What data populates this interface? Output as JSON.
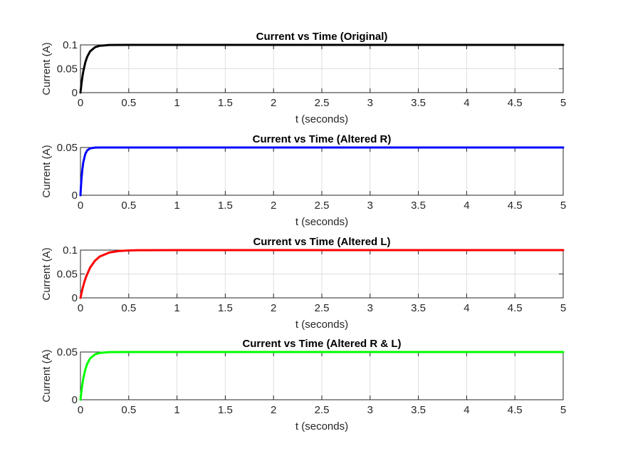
{
  "chart_data": [
    {
      "type": "line",
      "title": "Current vs Time (Original)",
      "xlabel": "t (seconds)",
      "ylabel": "Current (A)",
      "xlim": [
        0,
        5
      ],
      "ylim": [
        0,
        0.1
      ],
      "xticks": [
        "0",
        "0.5",
        "1",
        "1.5",
        "2",
        "2.5",
        "3",
        "3.5",
        "4",
        "4.5",
        "5"
      ],
      "yticks": [
        "0",
        "0.05",
        "0.1"
      ],
      "grid": true,
      "series": [
        {
          "color": "#000000",
          "x": [
            0,
            0.01,
            0.02,
            0.03,
            0.05,
            0.07,
            0.1,
            0.15,
            0.2,
            0.3,
            0.5,
            1,
            2,
            3,
            4,
            5
          ],
          "y": [
            0,
            0.0181,
            0.033,
            0.0451,
            0.0632,
            0.0753,
            0.0865,
            0.095,
            0.0982,
            0.0998,
            0.1,
            0.1,
            0.1,
            0.1,
            0.1,
            0.1
          ]
        }
      ]
    },
    {
      "type": "line",
      "title": "Current vs Time (Altered R)",
      "xlabel": "t (seconds)",
      "ylabel": "Current (A)",
      "xlim": [
        0,
        5
      ],
      "ylim": [
        0,
        0.05
      ],
      "xticks": [
        "0",
        "0.5",
        "1",
        "1.5",
        "2",
        "2.5",
        "3",
        "3.5",
        "4",
        "4.5",
        "5"
      ],
      "yticks": [
        "0",
        "0.05"
      ],
      "grid": true,
      "series": [
        {
          "color": "#0000ff",
          "x": [
            0,
            0.005,
            0.01,
            0.02,
            0.03,
            0.05,
            0.07,
            0.1,
            0.15,
            0.2,
            0.5,
            1,
            2,
            3,
            4,
            5
          ],
          "y": [
            0,
            0.0091,
            0.0165,
            0.0275,
            0.0349,
            0.0432,
            0.047,
            0.0491,
            0.0499,
            0.05,
            0.05,
            0.05,
            0.05,
            0.05,
            0.05,
            0.05
          ]
        }
      ]
    },
    {
      "type": "line",
      "title": "Current vs Time (Altered L)",
      "xlabel": "t (seconds)",
      "ylabel": "Current (A)",
      "xlim": [
        0,
        5
      ],
      "ylim": [
        0,
        0.1
      ],
      "xticks": [
        "0",
        "0.5",
        "1",
        "1.5",
        "2",
        "2.5",
        "3",
        "3.5",
        "4",
        "4.5",
        "5"
      ],
      "yticks": [
        "0",
        "0.05",
        "0.1"
      ],
      "grid": true,
      "series": [
        {
          "color": "#ff0000",
          "x": [
            0,
            0.02,
            0.04,
            0.06,
            0.1,
            0.15,
            0.2,
            0.3,
            0.4,
            0.5,
            0.6,
            0.7,
            1,
            2,
            3,
            4,
            5
          ],
          "y": [
            0,
            0.0181,
            0.033,
            0.0451,
            0.0632,
            0.0777,
            0.0865,
            0.095,
            0.0982,
            0.0993,
            0.0998,
            0.0999,
            0.1,
            0.1,
            0.1,
            0.1,
            0.1
          ]
        }
      ]
    },
    {
      "type": "line",
      "title": "Current vs Time (Altered R & L)",
      "xlabel": "t (seconds)",
      "ylabel": "Current (A)",
      "xlim": [
        0,
        5
      ],
      "ylim": [
        0,
        0.05
      ],
      "xticks": [
        "0",
        "0.5",
        "1",
        "1.5",
        "2",
        "2.5",
        "3",
        "3.5",
        "4",
        "4.5",
        "5"
      ],
      "yticks": [
        "0",
        "0.05"
      ],
      "grid": true,
      "series": [
        {
          "color": "#00ff00",
          "x": [
            0,
            0.01,
            0.02,
            0.03,
            0.05,
            0.07,
            0.1,
            0.15,
            0.2,
            0.3,
            0.5,
            1,
            2,
            3,
            4,
            5
          ],
          "y": [
            0,
            0.0091,
            0.0165,
            0.0226,
            0.0316,
            0.0377,
            0.0432,
            0.0475,
            0.0491,
            0.0499,
            0.05,
            0.05,
            0.05,
            0.05,
            0.05,
            0.05
          ]
        }
      ]
    }
  ]
}
